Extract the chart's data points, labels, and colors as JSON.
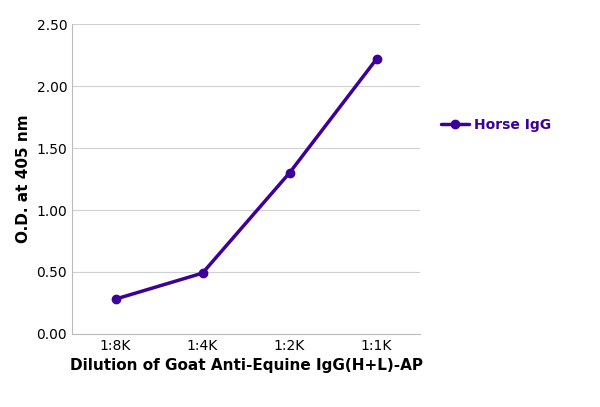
{
  "x_labels": [
    "1:8K",
    "1:4K",
    "1:2K",
    "1:1K"
  ],
  "x_values": [
    1,
    2,
    3,
    4
  ],
  "y_values": [
    0.28,
    0.49,
    1.3,
    2.22
  ],
  "line_color": "#3d0099",
  "marker_style": "o",
  "marker_size": 6,
  "line_width": 2.5,
  "ylabel": "O.D. at 405 nm",
  "xlabel": "Dilution of Goat Anti-Equine IgG(H+L)-AP",
  "ylim": [
    0,
    2.5
  ],
  "yticks": [
    0.0,
    0.5,
    1.0,
    1.5,
    2.0,
    2.5
  ],
  "legend_label": "Horse IgG",
  "legend_color": "#3d0099",
  "xlabel_fontsize": 11,
  "ylabel_fontsize": 11,
  "tick_fontsize": 10,
  "legend_fontsize": 10,
  "background_color": "#ffffff",
  "grid_color": "#d0d0d0"
}
